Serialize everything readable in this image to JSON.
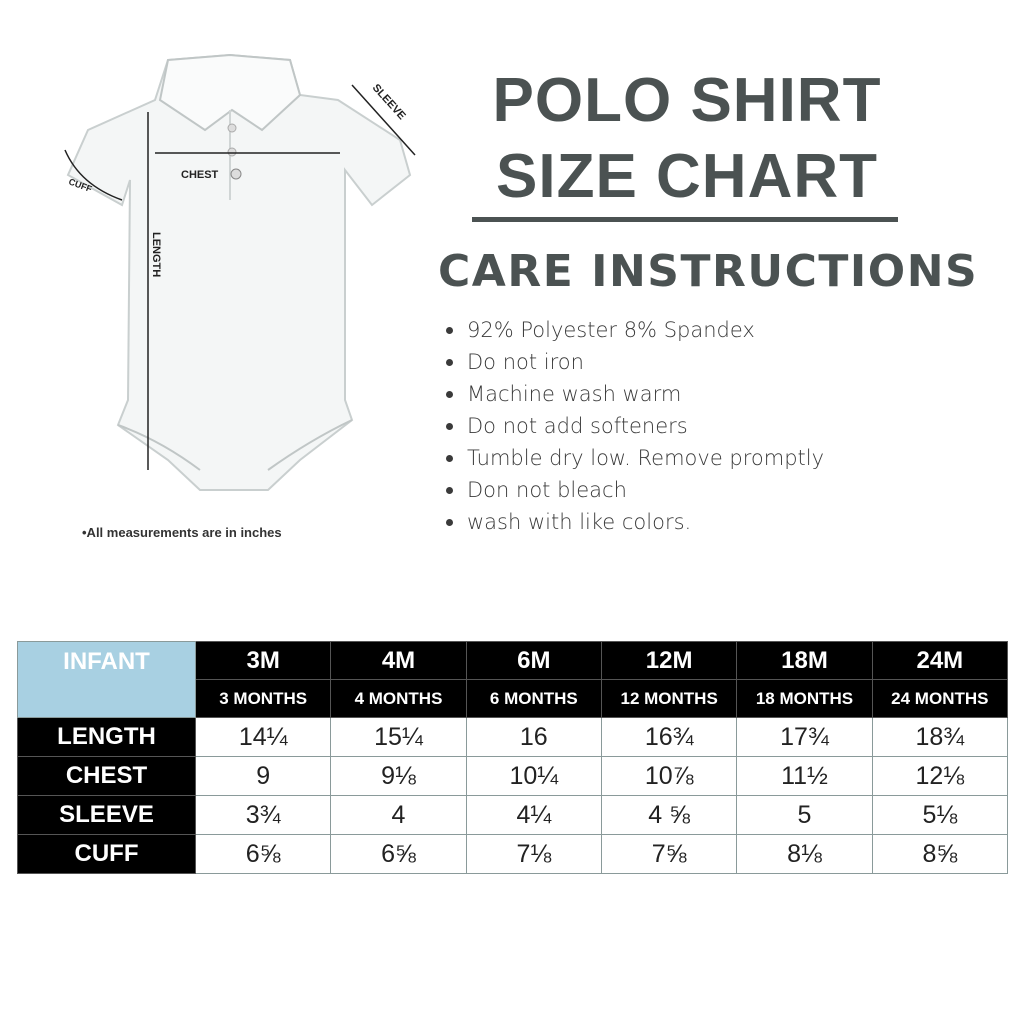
{
  "title": {
    "line1": "POLO SHIRT",
    "line2": "SIZE CHART"
  },
  "care": {
    "heading": "CARE INSTRUCTIONS",
    "items": [
      "92% Polyester 8% Spandex",
      "Do not iron",
      "Machine wash warm",
      "Do not add softeners",
      "Tumble dry low. Remove promptly",
      "Don not bleach",
      "wash with like colors."
    ]
  },
  "diagram": {
    "chest": "CHEST",
    "sleeve": "SLEEVE",
    "cuff": "CUFF",
    "length": "LENGTH"
  },
  "note": "•All measurements are in inches",
  "table": {
    "corner": "INFANT",
    "sizes": [
      "3M",
      "4M",
      "6M",
      "12M",
      "18M",
      "24M"
    ],
    "months": [
      "3 MONTHS",
      "4 MONTHS",
      "6 MONTHS",
      "12 MONTHS",
      "18 MONTHS",
      "24 MONTHS"
    ],
    "rows": [
      {
        "label": "LENGTH",
        "values": [
          "14¼",
          "15¼",
          "16",
          "16¾",
          "17¾",
          "18¾"
        ]
      },
      {
        "label": "CHEST",
        "values": [
          "9",
          "9⅛",
          "10¼",
          "10⅞",
          "11½",
          "12⅛"
        ]
      },
      {
        "label": "SLEEVE",
        "values": [
          "3¾",
          "4",
          "4¼",
          "4 ⅝",
          "5",
          "5⅛"
        ]
      },
      {
        "label": "CUFF",
        "values": [
          "6⅝",
          "6⅝",
          "7⅛",
          "7⅝",
          "8⅛",
          "8⅝"
        ]
      }
    ]
  },
  "colors": {
    "header_blue": "#a8d0e2",
    "title_gray": "#4b5252",
    "header_black": "#000000"
  }
}
